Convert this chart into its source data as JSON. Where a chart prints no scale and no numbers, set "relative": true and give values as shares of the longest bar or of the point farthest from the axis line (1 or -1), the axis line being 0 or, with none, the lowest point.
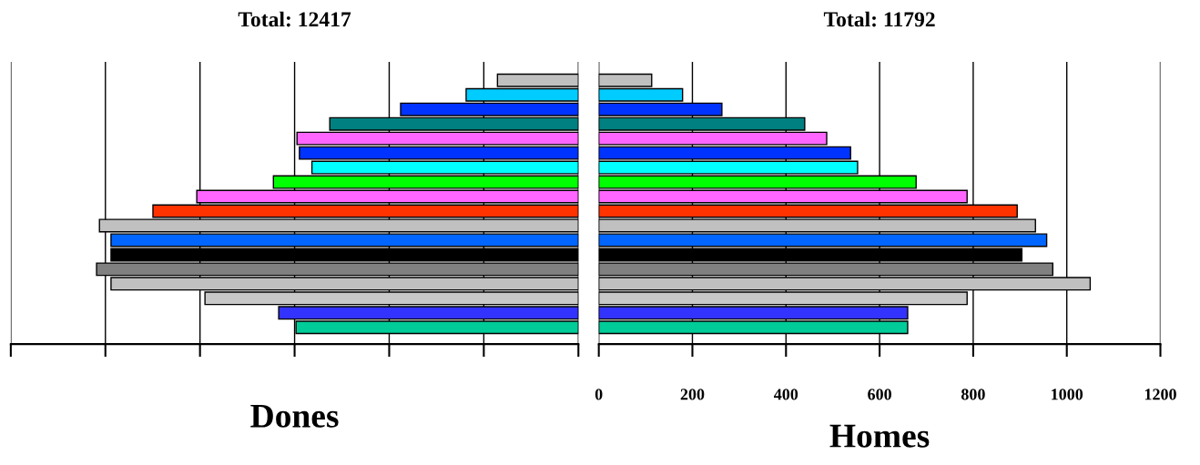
{
  "chart_data": [
    {
      "type": "bar",
      "orientation": "horizontal",
      "relative": true,
      "title": "Total: 12417",
      "xlabel": "Dones",
      "categories": [
        null,
        null,
        null,
        null,
        null,
        null,
        null,
        null,
        null,
        null,
        null,
        null,
        null,
        null,
        null,
        null,
        null,
        null
      ],
      "values": [
        0.168,
        0.233,
        0.369,
        0.516,
        0.584,
        0.579,
        0.553,
        0.633,
        0.792,
        0.883,
        0.994,
        0.97,
        0.97,
        1,
        0.97,
        0.775,
        0.622,
        0.586
      ],
      "colors": [
        "#c0c0c0",
        "#00ccff",
        "#0033ff",
        "#008080",
        "#ff66ff",
        "#0033ff",
        "#00ffff",
        "#00ff00",
        "#ff66ff",
        "#ff3300",
        "#c0c0c0",
        "#0066ff",
        "#000000",
        "#808080",
        "#c0c0c0",
        "#c8c8c8",
        "#3333ff",
        "#00cc99"
      ],
      "grid": "x"
    },
    {
      "type": "bar",
      "orientation": "horizontal",
      "title": "Total: 11792",
      "xlabel": "Homes",
      "categories": [
        null,
        null,
        null,
        null,
        null,
        null,
        null,
        null,
        null,
        null,
        null,
        null,
        null,
        null,
        null,
        null,
        null,
        null
      ],
      "values": [
        113,
        179,
        263,
        440,
        487,
        538,
        553,
        678,
        787,
        894,
        933,
        957,
        904,
        970,
        1050,
        787,
        660,
        660
      ],
      "colors": [
        "#c0c0c0",
        "#00ccff",
        "#0033ff",
        "#008080",
        "#ff66ff",
        "#0033ff",
        "#00ffff",
        "#00ff00",
        "#ff66ff",
        "#ff3300",
        "#c0c0c0",
        "#0066ff",
        "#000000",
        "#808080",
        "#c0c0c0",
        "#c8c8c8",
        "#3333ff",
        "#00cc99"
      ],
      "xlim": [
        0,
        1200
      ],
      "xticks": [
        0,
        200,
        400,
        600,
        800,
        1000,
        1200
      ],
      "grid": "x",
      "tick_labels": "x"
    }
  ]
}
